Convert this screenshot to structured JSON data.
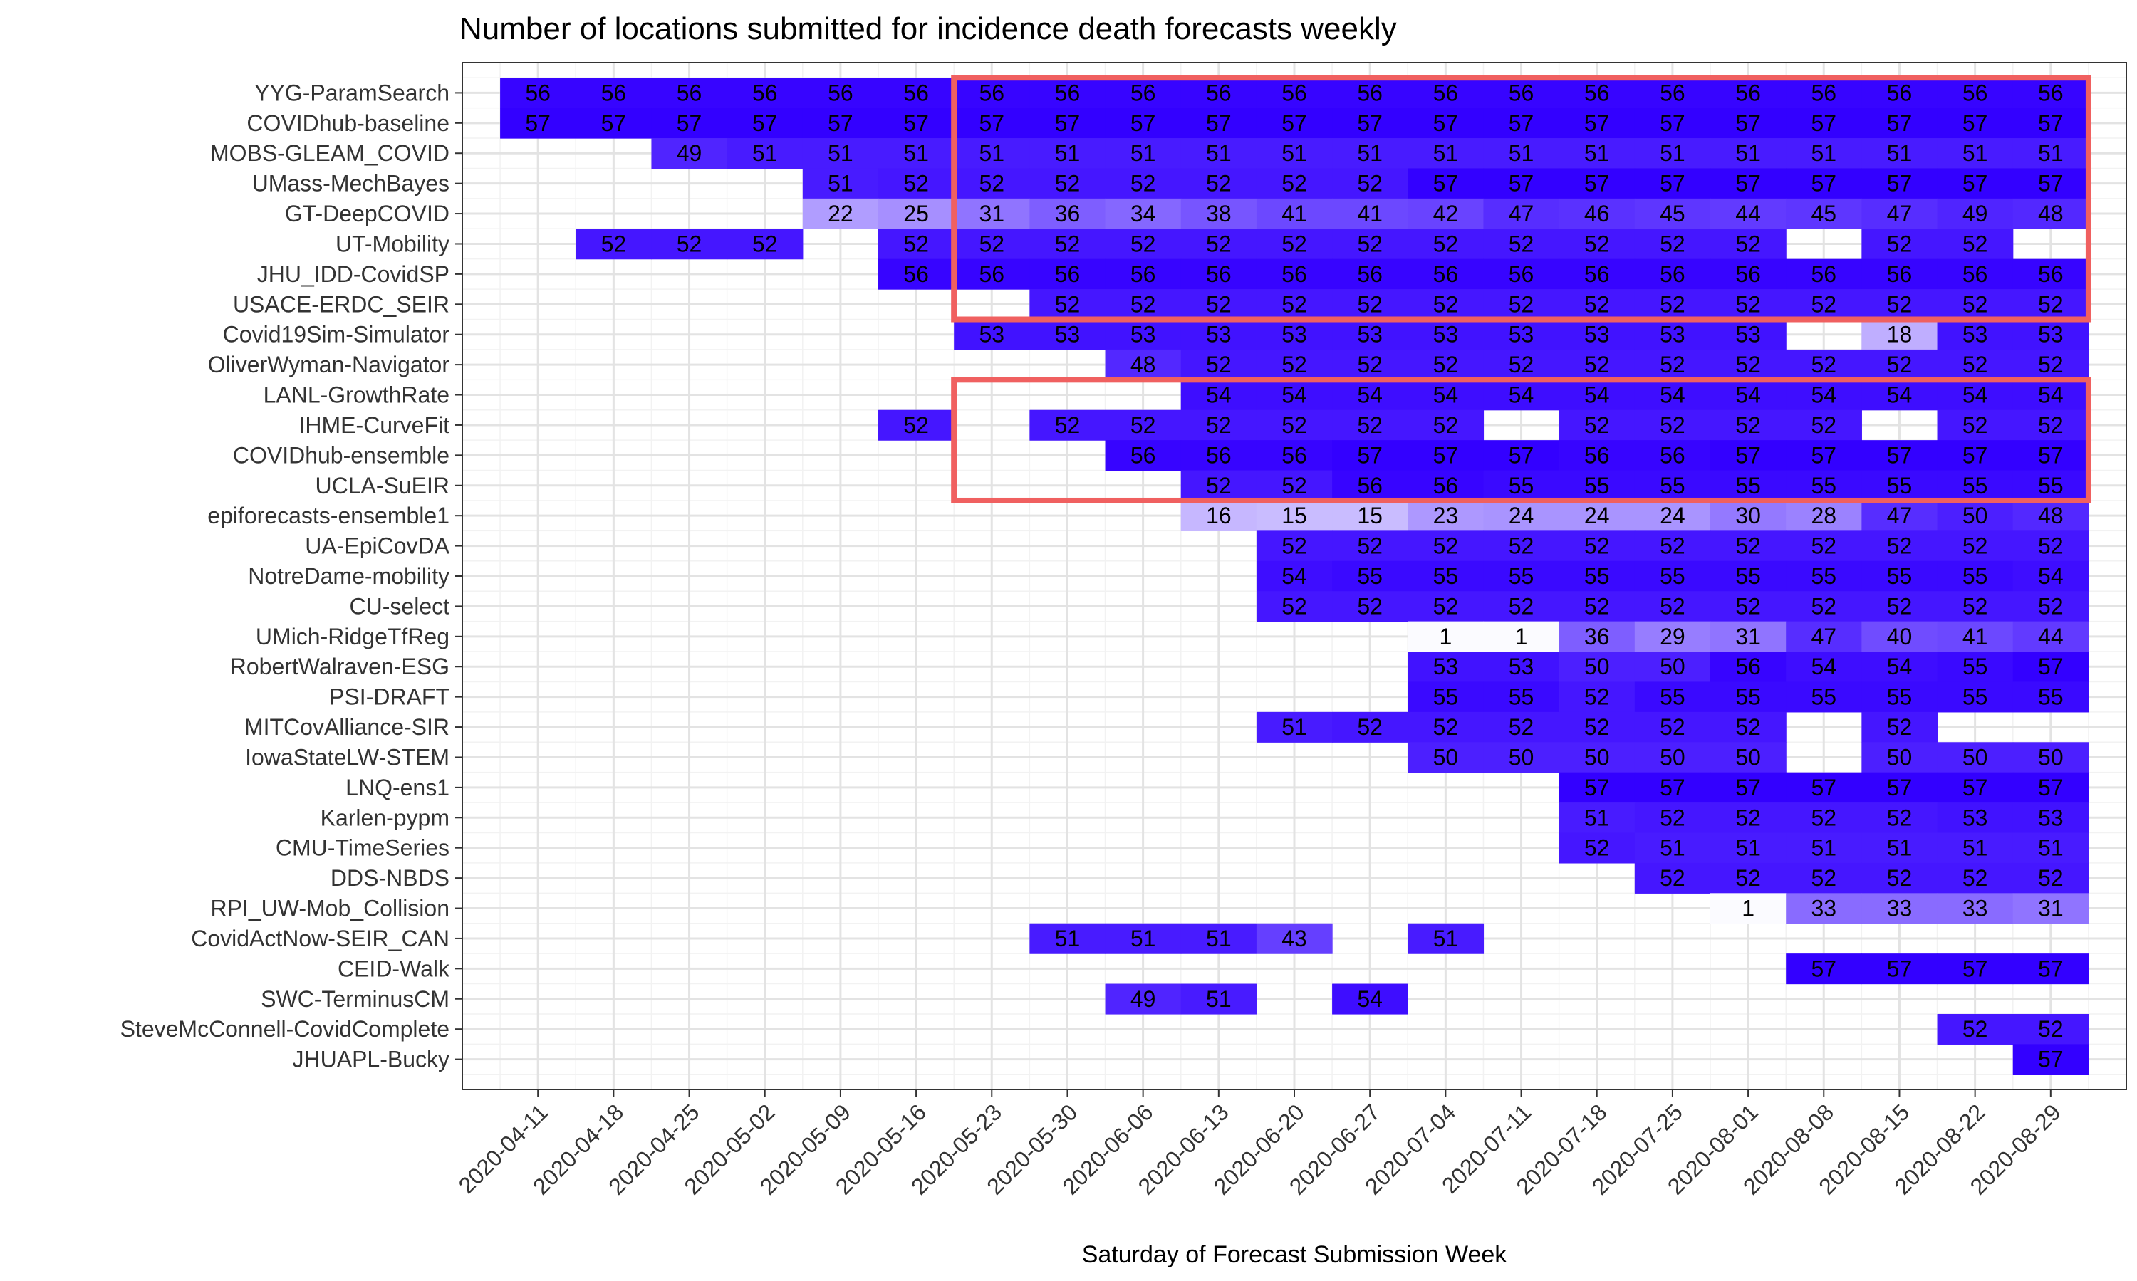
{
  "chart_data": {
    "type": "heatmap",
    "title": "Number of locations submitted for incidence death forecasts weekly",
    "xlabel": "Saturday of Forecast Submission Week",
    "ylabel": "",
    "x": [
      "2020-04-11",
      "2020-04-18",
      "2020-04-25",
      "2020-05-02",
      "2020-05-09",
      "2020-05-16",
      "2020-05-23",
      "2020-05-30",
      "2020-06-06",
      "2020-06-13",
      "2020-06-20",
      "2020-06-27",
      "2020-07-04",
      "2020-07-11",
      "2020-07-18",
      "2020-07-25",
      "2020-08-01",
      "2020-08-08",
      "2020-08-15",
      "2020-08-22",
      "2020-08-29"
    ],
    "y": [
      "YYG-ParamSearch",
      "COVIDhub-baseline",
      "MOBS-GLEAM_COVID",
      "UMass-MechBayes",
      "GT-DeepCOVID",
      "UT-Mobility",
      "JHU_IDD-CovidSP",
      "USACE-ERDC_SEIR",
      "Covid19Sim-Simulator",
      "OliverWyman-Navigator",
      "LANL-GrowthRate",
      "IHME-CurveFit",
      "COVIDhub-ensemble",
      "UCLA-SuEIR",
      "epiforecasts-ensemble1",
      "UA-EpiCovDA",
      "NotreDame-mobility",
      "CU-select",
      "UMich-RidgeTfReg",
      "RobertWalraven-ESG",
      "PSI-DRAFT",
      "MITCovAlliance-SIR",
      "IowaStateLW-STEM",
      "LNQ-ens1",
      "Karlen-pypm",
      "CMU-TimeSeries",
      "DDS-NBDS",
      "RPI_UW-Mob_Collision",
      "CovidActNow-SEIR_CAN",
      "CEID-Walk",
      "SWC-TerminusCM",
      "SteveMcConnell-CovidComplete",
      "JHUAPL-Bucky"
    ],
    "values": [
      [
        56,
        56,
        56,
        56,
        56,
        56,
        56,
        56,
        56,
        56,
        56,
        56,
        56,
        56,
        56,
        56,
        56,
        56,
        56,
        56,
        56
      ],
      [
        57,
        57,
        57,
        57,
        57,
        57,
        57,
        57,
        57,
        57,
        57,
        57,
        57,
        57,
        57,
        57,
        57,
        57,
        57,
        57,
        57
      ],
      [
        null,
        null,
        49,
        51,
        51,
        51,
        51,
        51,
        51,
        51,
        51,
        51,
        51,
        51,
        51,
        51,
        51,
        51,
        51,
        51,
        51
      ],
      [
        null,
        null,
        null,
        null,
        51,
        52,
        52,
        52,
        52,
        52,
        52,
        52,
        57,
        57,
        57,
        57,
        57,
        57,
        57,
        57,
        57
      ],
      [
        null,
        null,
        null,
        null,
        22,
        25,
        31,
        36,
        34,
        38,
        41,
        41,
        42,
        47,
        46,
        45,
        44,
        45,
        47,
        49,
        48
      ],
      [
        null,
        52,
        52,
        52,
        null,
        52,
        52,
        52,
        52,
        52,
        52,
        52,
        52,
        52,
        52,
        52,
        52,
        null,
        52,
        52,
        null
      ],
      [
        null,
        null,
        null,
        null,
        null,
        56,
        56,
        56,
        56,
        56,
        56,
        56,
        56,
        56,
        56,
        56,
        56,
        56,
        56,
        56,
        56
      ],
      [
        null,
        null,
        null,
        null,
        null,
        null,
        null,
        52,
        52,
        52,
        52,
        52,
        52,
        52,
        52,
        52,
        52,
        52,
        52,
        52,
        52
      ],
      [
        null,
        null,
        null,
        null,
        null,
        null,
        53,
        53,
        53,
        53,
        53,
        53,
        53,
        53,
        53,
        53,
        53,
        null,
        18,
        53,
        53
      ],
      [
        null,
        null,
        null,
        null,
        null,
        null,
        null,
        null,
        48,
        52,
        52,
        52,
        52,
        52,
        52,
        52,
        52,
        52,
        52,
        52,
        52
      ],
      [
        null,
        null,
        null,
        null,
        null,
        null,
        null,
        null,
        null,
        54,
        54,
        54,
        54,
        54,
        54,
        54,
        54,
        54,
        54,
        54,
        54
      ],
      [
        null,
        null,
        null,
        null,
        null,
        52,
        null,
        52,
        52,
        52,
        52,
        52,
        52,
        null,
        52,
        52,
        52,
        52,
        null,
        52,
        52
      ],
      [
        null,
        null,
        null,
        null,
        null,
        null,
        null,
        null,
        56,
        56,
        56,
        57,
        57,
        57,
        56,
        56,
        57,
        57,
        57,
        57,
        57
      ],
      [
        null,
        null,
        null,
        null,
        null,
        null,
        null,
        null,
        null,
        52,
        52,
        56,
        56,
        55,
        55,
        55,
        55,
        55,
        55,
        55,
        55
      ],
      [
        null,
        null,
        null,
        null,
        null,
        null,
        null,
        null,
        null,
        16,
        15,
        15,
        23,
        24,
        24,
        24,
        30,
        28,
        47,
        50,
        48
      ],
      [
        null,
        null,
        null,
        null,
        null,
        null,
        null,
        null,
        null,
        null,
        52,
        52,
        52,
        52,
        52,
        52,
        52,
        52,
        52,
        52,
        52
      ],
      [
        null,
        null,
        null,
        null,
        null,
        null,
        null,
        null,
        null,
        null,
        54,
        55,
        55,
        55,
        55,
        55,
        55,
        55,
        55,
        55,
        54
      ],
      [
        null,
        null,
        null,
        null,
        null,
        null,
        null,
        null,
        null,
        null,
        52,
        52,
        52,
        52,
        52,
        52,
        52,
        52,
        52,
        52,
        52
      ],
      [
        null,
        null,
        null,
        null,
        null,
        null,
        null,
        null,
        null,
        null,
        null,
        null,
        1,
        1,
        36,
        29,
        31,
        47,
        40,
        41,
        44
      ],
      [
        null,
        null,
        null,
        null,
        null,
        null,
        null,
        null,
        null,
        null,
        null,
        null,
        53,
        53,
        50,
        50,
        56,
        54,
        54,
        55,
        57
      ],
      [
        null,
        null,
        null,
        null,
        null,
        null,
        null,
        null,
        null,
        null,
        null,
        null,
        55,
        55,
        52,
        55,
        55,
        55,
        55,
        55,
        55
      ],
      [
        null,
        null,
        null,
        null,
        null,
        null,
        null,
        null,
        null,
        null,
        51,
        52,
        52,
        52,
        52,
        52,
        52,
        null,
        52,
        null,
        null
      ],
      [
        null,
        null,
        null,
        null,
        null,
        null,
        null,
        null,
        null,
        null,
        null,
        null,
        50,
        50,
        50,
        50,
        50,
        null,
        50,
        50,
        50
      ],
      [
        null,
        null,
        null,
        null,
        null,
        null,
        null,
        null,
        null,
        null,
        null,
        null,
        null,
        null,
        57,
        57,
        57,
        57,
        57,
        57,
        57
      ],
      [
        null,
        null,
        null,
        null,
        null,
        null,
        null,
        null,
        null,
        null,
        null,
        null,
        null,
        null,
        51,
        52,
        52,
        52,
        52,
        53,
        53
      ],
      [
        null,
        null,
        null,
        null,
        null,
        null,
        null,
        null,
        null,
        null,
        null,
        null,
        null,
        null,
        52,
        51,
        51,
        51,
        51,
        51,
        51
      ],
      [
        null,
        null,
        null,
        null,
        null,
        null,
        null,
        null,
        null,
        null,
        null,
        null,
        null,
        null,
        null,
        52,
        52,
        52,
        52,
        52,
        52
      ],
      [
        null,
        null,
        null,
        null,
        null,
        null,
        null,
        null,
        null,
        null,
        null,
        null,
        null,
        null,
        null,
        null,
        1,
        33,
        33,
        33,
        31
      ],
      [
        null,
        null,
        null,
        null,
        null,
        null,
        null,
        51,
        51,
        51,
        43,
        null,
        51,
        null,
        null,
        null,
        null,
        null,
        null,
        null,
        null
      ],
      [
        null,
        null,
        null,
        null,
        null,
        null,
        null,
        null,
        null,
        null,
        null,
        null,
        null,
        null,
        null,
        null,
        null,
        57,
        57,
        57,
        57
      ],
      [
        null,
        null,
        null,
        null,
        null,
        null,
        null,
        null,
        49,
        51,
        null,
        54,
        null,
        null,
        null,
        null,
        null,
        null,
        null,
        null,
        null
      ],
      [
        null,
        null,
        null,
        null,
        null,
        null,
        null,
        null,
        null,
        null,
        null,
        null,
        null,
        null,
        null,
        null,
        null,
        null,
        null,
        52,
        52
      ],
      [
        null,
        null,
        null,
        null,
        null,
        null,
        null,
        null,
        null,
        null,
        null,
        null,
        null,
        null,
        null,
        null,
        null,
        null,
        null,
        null,
        57
      ]
    ],
    "color_scale": {
      "low": "#ffffff",
      "high": "#3300ff",
      "value_range": [
        0,
        57
      ]
    },
    "highlight_boxes": [
      {
        "color": "#f06060",
        "x_from": "2020-05-23",
        "x_to": "2020-08-29",
        "y_from": "YYG-ParamSearch",
        "y_to": "USACE-ERDC_SEIR"
      },
      {
        "color": "#f06060",
        "x_from": "2020-05-23",
        "x_to": "2020-08-29",
        "y_from": "LANL-GrowthRate",
        "y_to": "UCLA-SuEIR"
      }
    ],
    "grid": true,
    "legend": "none"
  }
}
